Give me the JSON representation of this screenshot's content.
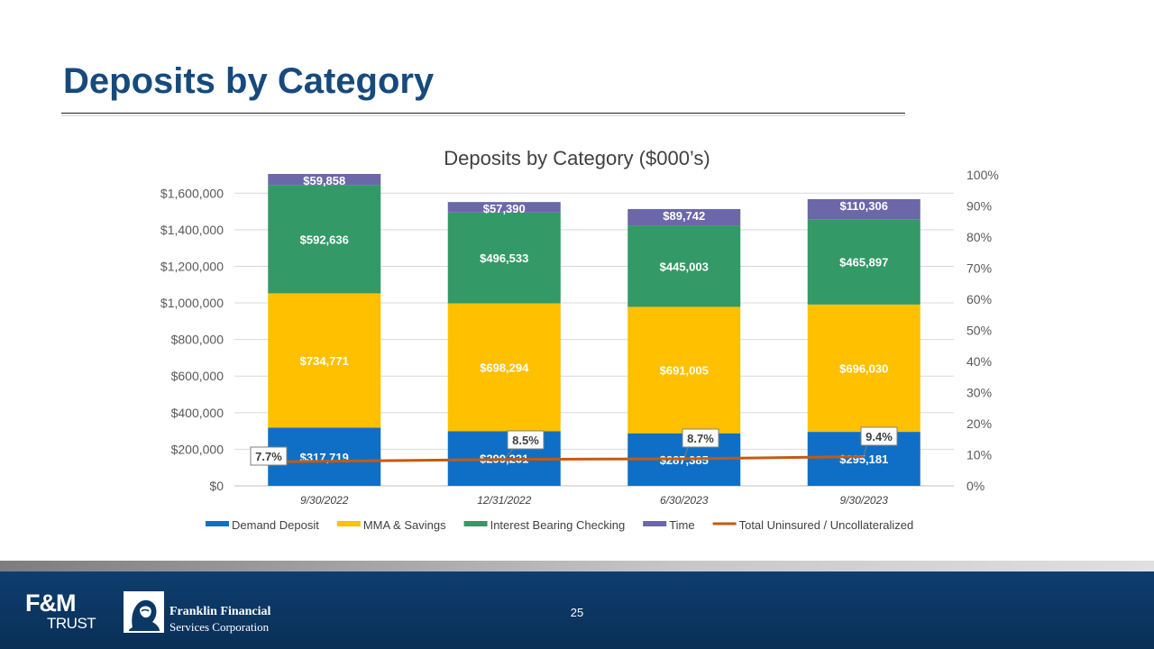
{
  "slide": {
    "title": "Deposits by Category",
    "page_number": "25"
  },
  "footer": {
    "logo_primary": {
      "top": "F&M",
      "bottom": "TRUST"
    },
    "logo_secondary": {
      "line1": "Franklin Financial",
      "line2": "Services Corporation"
    },
    "background_color": "#0c3865"
  },
  "chart_data": {
    "type": "bar",
    "stacked": true,
    "title": "Deposits by Category ($000’s)",
    "categories": [
      "9/30/2022",
      "12/31/2022",
      "6/30/2023",
      "9/30/2023"
    ],
    "series": [
      {
        "name": "Demand Deposit",
        "color": "#0f6fc6",
        "values": [
          317719,
          299231,
          287385,
          295181
        ],
        "labels": [
          "$317,719",
          "$299,231",
          "$287,385",
          "$295,181"
        ]
      },
      {
        "name": "MMA & Savings",
        "color": "#ffc000",
        "values": [
          734771,
          698294,
          691005,
          696030
        ],
        "labels": [
          "$734,771",
          "$698,294",
          "$691,005",
          "$696,030"
        ]
      },
      {
        "name": "Interest Bearing Checking",
        "color": "#339966",
        "values": [
          592636,
          496533,
          445003,
          465897
        ],
        "labels": [
          "$592,636",
          "$496,533",
          "$445,003",
          "$465,897"
        ]
      },
      {
        "name": "Time",
        "color": "#6b67a8",
        "values": [
          59858,
          57390,
          89742,
          110306
        ],
        "labels": [
          "$59,858",
          "$57,390",
          "$89,742",
          "$110,306"
        ]
      }
    ],
    "line_series": {
      "name": "Total Uninsured / Uncollateralized",
      "color": "#c55a11",
      "axis": "right",
      "values": [
        7.7,
        8.5,
        8.7,
        9.4
      ],
      "labels": [
        "7.7%",
        "8.5%",
        "8.7%",
        "9.4%"
      ]
    },
    "y_left": {
      "min": 0,
      "max": 1700000,
      "ticks": [
        0,
        200000,
        400000,
        600000,
        800000,
        1000000,
        1200000,
        1400000,
        1600000
      ],
      "tick_labels": [
        "$0",
        "$200,000",
        "$400,000",
        "$600,000",
        "$800,000",
        "$1,000,000",
        "$1,200,000",
        "$1,400,000",
        "$1,600,000"
      ]
    },
    "y_right": {
      "min": 0,
      "max": 100,
      "ticks": [
        0,
        10,
        20,
        30,
        40,
        50,
        60,
        70,
        80,
        90,
        100
      ],
      "tick_labels": [
        "0%",
        "10%",
        "20%",
        "30%",
        "40%",
        "50%",
        "60%",
        "70%",
        "80%",
        "90%",
        "100%"
      ]
    },
    "grid": true,
    "legend_position": "bottom"
  }
}
